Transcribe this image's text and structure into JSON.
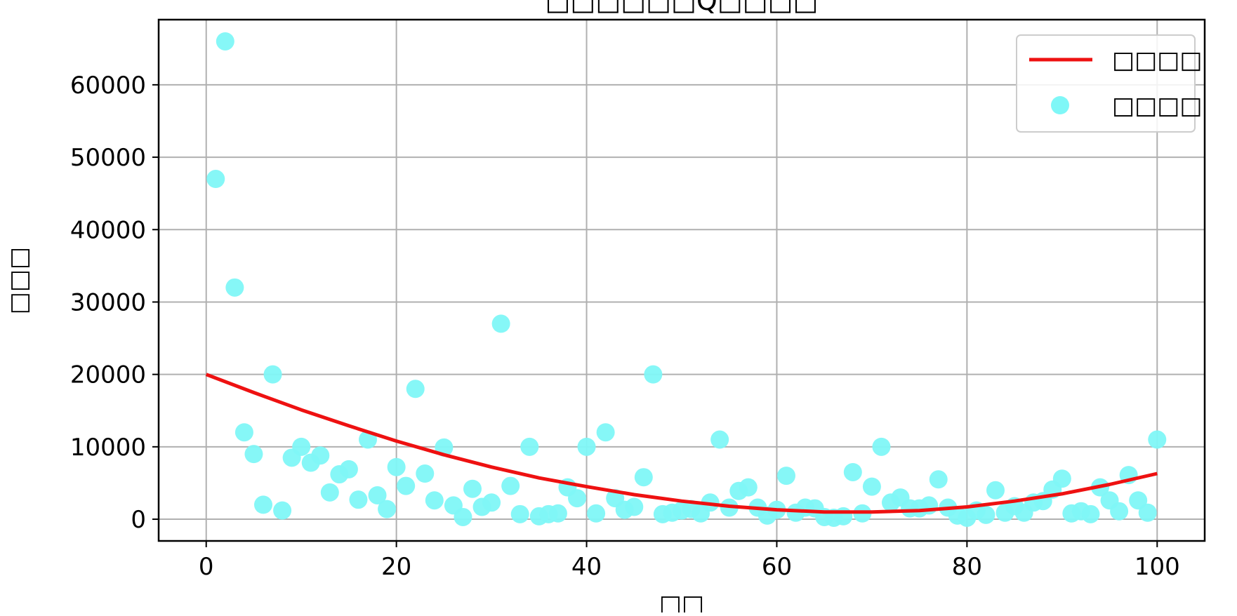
{
  "chart_data": {
    "type": "scatter",
    "title": "□□□□□□Q□□□□",
    "xlabel": "□□",
    "ylabel": "□□□",
    "xlim": [
      -5,
      105
    ],
    "ylim": [
      -3000,
      69000
    ],
    "xticks": [
      0,
      20,
      40,
      60,
      80,
      100
    ],
    "yticks": [
      0,
      10000,
      20000,
      30000,
      40000,
      50000,
      60000
    ],
    "grid": true,
    "legend_position": "top-right",
    "series": [
      {
        "name": "□□□□",
        "kind": "line",
        "color": "#ee1111",
        "x": [
          0,
          5,
          10,
          15,
          20,
          25,
          30,
          35,
          40,
          45,
          50,
          55,
          60,
          65,
          70,
          75,
          80,
          85,
          90,
          95,
          100
        ],
        "y": [
          20000,
          17500,
          15100,
          12900,
          10800,
          8900,
          7200,
          5700,
          4500,
          3400,
          2500,
          1800,
          1300,
          1000,
          1000,
          1200,
          1700,
          2500,
          3500,
          4800,
          6300
        ]
      },
      {
        "name": "□□□□",
        "kind": "scatter",
        "color": "#7ff7f7",
        "x": [
          1,
          2,
          3,
          4,
          5,
          6,
          7,
          8,
          9,
          10,
          11,
          12,
          13,
          14,
          15,
          16,
          17,
          18,
          19,
          20,
          21,
          22,
          23,
          24,
          25,
          26,
          27,
          28,
          29,
          30,
          31,
          32,
          33,
          34,
          35,
          36,
          37,
          38,
          39,
          40,
          41,
          42,
          43,
          44,
          45,
          46,
          47,
          48,
          49,
          50,
          51,
          52,
          53,
          54,
          55,
          56,
          57,
          58,
          59,
          60,
          61,
          62,
          63,
          64,
          65,
          66,
          67,
          68,
          69,
          70,
          71,
          72,
          73,
          74,
          75,
          76,
          77,
          78,
          79,
          80,
          81,
          82,
          83,
          84,
          85,
          86,
          87,
          88,
          89,
          90,
          91,
          92,
          93,
          94,
          95,
          96,
          97,
          98,
          99,
          100
        ],
        "y": [
          47000,
          66000,
          32000,
          12000,
          9000,
          2000,
          20000,
          1200,
          8500,
          10000,
          7800,
          8800,
          3700,
          6200,
          6900,
          2700,
          11000,
          3300,
          1400,
          7200,
          4600,
          18000,
          6300,
          2600,
          9900,
          1900,
          300,
          4200,
          1700,
          2300,
          27000,
          4600,
          700,
          10000,
          400,
          700,
          800,
          4400,
          2900,
          10000,
          800,
          12000,
          2900,
          1300,
          1700,
          5800,
          20000,
          700,
          900,
          1200,
          1400,
          800,
          2300,
          11000,
          1600,
          3900,
          4400,
          1600,
          500,
          1300,
          6000,
          900,
          1600,
          1500,
          300,
          200,
          400,
          6500,
          800,
          4500,
          10000,
          2300,
          3000,
          1500,
          1500,
          1900,
          5500,
          1600,
          500,
          200,
          1200,
          600,
          4000,
          900,
          1800,
          900,
          2300,
          2500,
          4100,
          5600,
          800,
          1100,
          700,
          4400,
          2600,
          1100,
          6100,
          2600,
          900,
          11000
        ]
      }
    ]
  }
}
